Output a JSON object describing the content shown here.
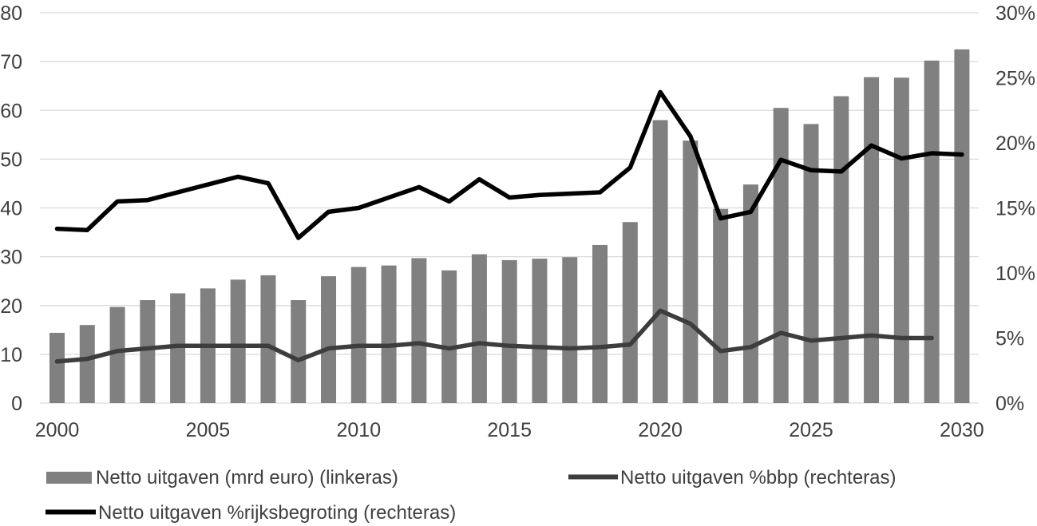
{
  "chart_data": {
    "type": "combo-bar-line",
    "title": "",
    "categories": [
      2000,
      2001,
      2002,
      2003,
      2004,
      2005,
      2006,
      2007,
      2008,
      2009,
      2010,
      2011,
      2012,
      2013,
      2014,
      2015,
      2016,
      2017,
      2018,
      2019,
      2020,
      2021,
      2022,
      2023,
      2024,
      2025,
      2026,
      2027,
      2028,
      2029,
      2030
    ],
    "x_ticks": [
      {
        "value": 2000,
        "label": "2000"
      },
      {
        "value": 2005,
        "label": "2005"
      },
      {
        "value": 2010,
        "label": "2010"
      },
      {
        "value": 2015,
        "label": "2015"
      },
      {
        "value": 2020,
        "label": "2020"
      },
      {
        "value": 2025,
        "label": "2025"
      },
      {
        "value": 2030,
        "label": "2030"
      }
    ],
    "left_axis": {
      "range": [
        0,
        80
      ],
      "ticks": [
        {
          "value": 0,
          "label": "0"
        },
        {
          "value": 10,
          "label": "10"
        },
        {
          "value": 20,
          "label": "20"
        },
        {
          "value": 30,
          "label": "30"
        },
        {
          "value": 40,
          "label": "40"
        },
        {
          "value": 50,
          "label": "50"
        },
        {
          "value": 60,
          "label": "60"
        },
        {
          "value": 70,
          "label": "70"
        },
        {
          "value": 80,
          "label": "80"
        }
      ]
    },
    "right_axis": {
      "range": [
        0,
        30
      ],
      "ticks": [
        {
          "value": 0,
          "label": "0%"
        },
        {
          "value": 5,
          "label": "5%"
        },
        {
          "value": 10,
          "label": "10%"
        },
        {
          "value": 15,
          "label": "15%"
        },
        {
          "value": 20,
          "label": "20%"
        },
        {
          "value": 25,
          "label": "25%"
        },
        {
          "value": 30,
          "label": "30%"
        }
      ]
    },
    "grid": true,
    "legend_position": "bottom",
    "series": [
      {
        "name": "Netto uitgaven (mrd euro) (linkeras)",
        "type": "bar",
        "axis": "left",
        "color": "#808080",
        "values": [
          14.4,
          16.0,
          19.7,
          21.1,
          22.5,
          23.5,
          25.3,
          26.2,
          21.1,
          26.0,
          27.9,
          28.2,
          29.7,
          27.2,
          30.5,
          29.3,
          29.6,
          29.9,
          32.4,
          37.1,
          58.0,
          53.8,
          39.8,
          44.8,
          60.5,
          57.2,
          62.9,
          66.8,
          66.7,
          70.2,
          72.5
        ]
      },
      {
        "name": "Netto uitgaven %bbp (rechteras)",
        "type": "line",
        "axis": "right",
        "color": "#3d3d3d",
        "values": [
          3.2,
          3.4,
          4.0,
          4.2,
          4.4,
          4.4,
          4.4,
          4.4,
          3.3,
          4.2,
          4.4,
          4.4,
          4.6,
          4.2,
          4.6,
          4.4,
          4.3,
          4.2,
          4.3,
          4.5,
          7.1,
          6.1,
          4.0,
          4.3,
          5.4,
          4.8,
          5.0,
          5.2,
          5.0,
          5.0,
          null
        ]
      },
      {
        "name": "Netto uitgaven %rijksbegroting (rechteras)",
        "type": "line",
        "axis": "right",
        "color": "#000000",
        "values": [
          13.4,
          13.3,
          15.5,
          15.6,
          16.2,
          16.8,
          17.4,
          16.9,
          12.7,
          14.7,
          15.0,
          15.8,
          16.6,
          15.5,
          17.2,
          15.8,
          16.0,
          16.1,
          16.2,
          18.1,
          23.9,
          20.5,
          14.2,
          14.7,
          18.7,
          17.9,
          17.8,
          19.8,
          18.8,
          19.2,
          19.1
        ]
      }
    ]
  },
  "colors": {
    "bar": "#808080",
    "line_bbp": "#3d3d3d",
    "line_rijksbegroting": "#000000",
    "gridline": "#d9d9d9",
    "axis_text": "#404040"
  }
}
